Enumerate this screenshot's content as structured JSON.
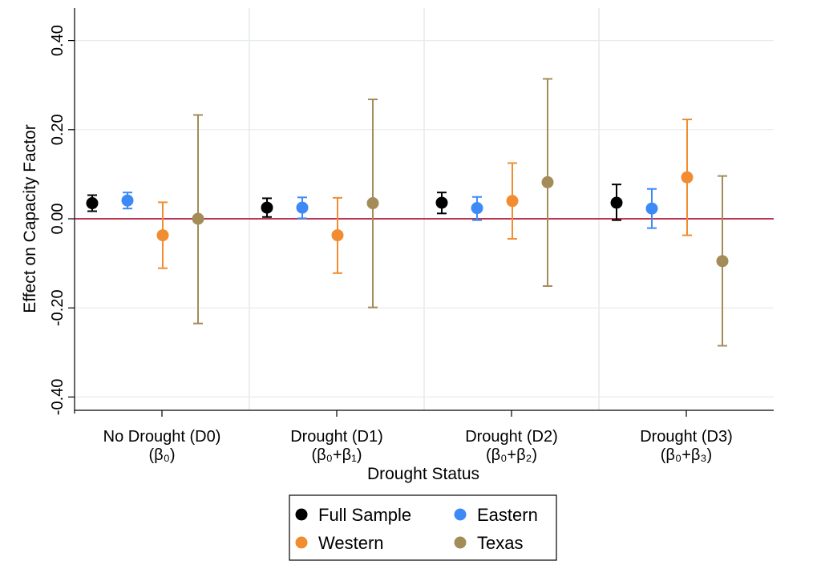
{
  "chart_data": {
    "type": "scatter",
    "title": "",
    "xlabel": "Drought Status",
    "ylabel": "Effect on Capacity Factor",
    "ylim": [
      -0.43,
      0.43
    ],
    "yticks": [
      0.4,
      0.2,
      0.0,
      -0.2,
      -0.4
    ],
    "ytick_labels": [
      "0.40",
      "0.20",
      "0.00",
      "-0.20",
      "-0.40"
    ],
    "grid": true,
    "zero_line": true,
    "legend_position": "bottom-center",
    "categories": [
      {
        "line1": "No Drought (D0)",
        "line2": "(β₀)"
      },
      {
        "line1": "Drought (D1)",
        "line2": "(β₀+β₁)"
      },
      {
        "line1": "Drought (D2)",
        "line2": "(β₀+β₂)"
      },
      {
        "line1": "Drought (D3)",
        "line2": "(β₀+β₃)"
      }
    ],
    "series": [
      {
        "name": "Full Sample",
        "color": "#000000",
        "points": [
          {
            "estimate": 0.035,
            "lower": 0.017,
            "upper": 0.053
          },
          {
            "estimate": 0.025,
            "lower": 0.004,
            "upper": 0.046
          },
          {
            "estimate": 0.036,
            "lower": 0.012,
            "upper": 0.059
          },
          {
            "estimate": 0.036,
            "lower": -0.003,
            "upper": 0.077
          }
        ]
      },
      {
        "name": "Eastern",
        "color": "#3d8af7",
        "points": [
          {
            "estimate": 0.041,
            "lower": 0.023,
            "upper": 0.059
          },
          {
            "estimate": 0.025,
            "lower": 0.001,
            "upper": 0.048
          },
          {
            "estimate": 0.024,
            "lower": -0.003,
            "upper": 0.049
          },
          {
            "estimate": 0.023,
            "lower": -0.021,
            "upper": 0.067
          }
        ]
      },
      {
        "name": "Western",
        "color": "#f28c30",
        "points": [
          {
            "estimate": -0.037,
            "lower": -0.111,
            "upper": 0.037
          },
          {
            "estimate": -0.037,
            "lower": -0.122,
            "upper": 0.047
          },
          {
            "estimate": 0.04,
            "lower": -0.045,
            "upper": 0.125
          },
          {
            "estimate": 0.093,
            "lower": -0.037,
            "upper": 0.223
          }
        ]
      },
      {
        "name": "Texas",
        "color": "#a38c58",
        "points": [
          {
            "estimate": 0.0,
            "lower": -0.235,
            "upper": 0.233
          },
          {
            "estimate": 0.035,
            "lower": -0.199,
            "upper": 0.268
          },
          {
            "estimate": 0.082,
            "lower": -0.151,
            "upper": 0.314
          },
          {
            "estimate": -0.095,
            "lower": -0.285,
            "upper": 0.096
          }
        ]
      }
    ]
  }
}
